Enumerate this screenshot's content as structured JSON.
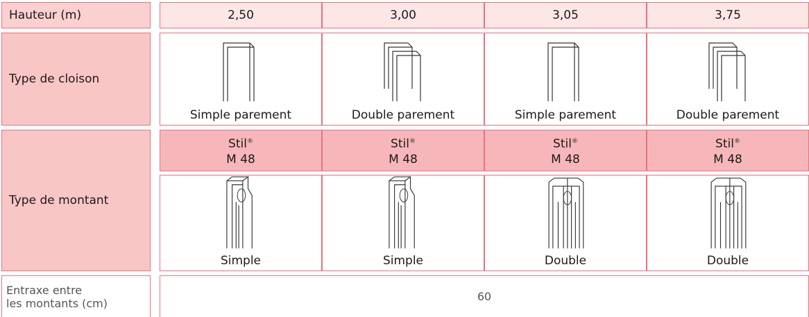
{
  "header": {
    "label": "Hauteur (m)",
    "values": [
      "2,50",
      "3,00",
      "3,05",
      "3,75"
    ]
  },
  "cloison": {
    "label": "Type de cloison",
    "types": [
      "Simple parement",
      "Double parement",
      "Simple parement",
      "Double parement"
    ]
  },
  "montant": {
    "label": "Type de montant",
    "products": [
      {
        "brand": "Stil",
        "mark": "®",
        "model": "M 48"
      },
      {
        "brand": "Stil",
        "mark": "®",
        "model": "M 48"
      },
      {
        "brand": "Stil",
        "mark": "®",
        "model": "M 48"
      },
      {
        "brand": "Stil",
        "mark": "®",
        "model": "M 48"
      }
    ],
    "types": [
      "Simple",
      "Simple",
      "Double",
      "Double"
    ]
  },
  "entraxe": {
    "label_lines": [
      "Entraxe entre",
      "les montants (cm)"
    ],
    "value": "60"
  }
}
